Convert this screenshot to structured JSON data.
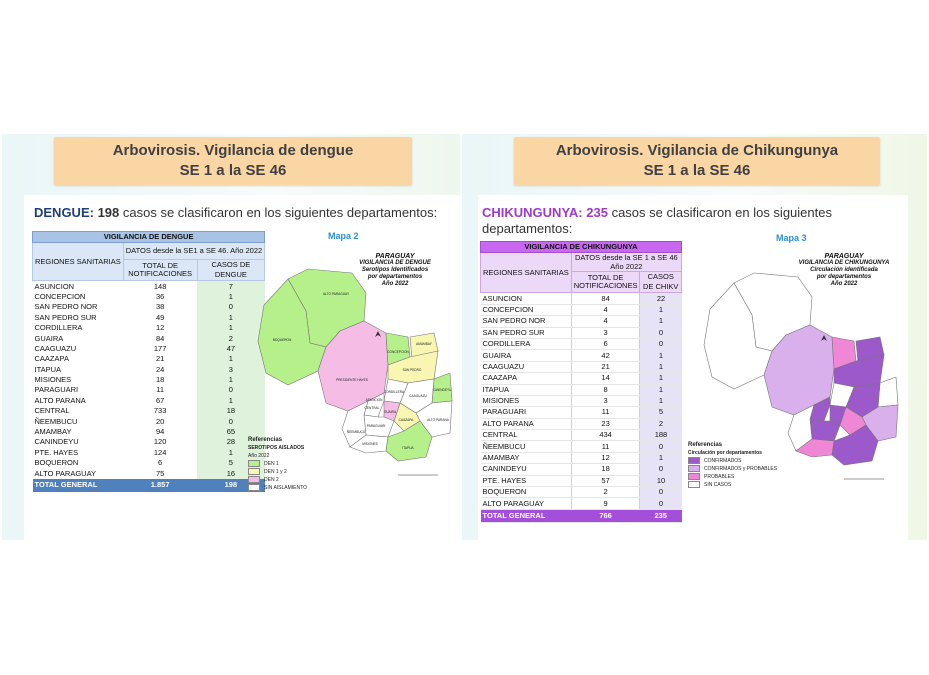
{
  "left": {
    "banner": {
      "line1": "Arbovirosis. Vigilancia de dengue",
      "line2": "SE 1 a la SE 46"
    },
    "heading": {
      "disease": "DENGUE:",
      "count": "198",
      "text": " casos se clasificaron en los siguientes departamentos:"
    },
    "table": {
      "title": "VIGILANCIA DE DENGUE",
      "col_region": "REGIONES  SANITARIAS",
      "col_data": "DATOS desde la SE1 a SE 46. Año 2022",
      "col_notif": "TOTAL DE NOTIFICACIONES",
      "col_cases": "CASOS DE DENGUE",
      "rows": [
        [
          "ASUNCION",
          "148",
          "7"
        ],
        [
          "CONCEPCION",
          "36",
          "1"
        ],
        [
          "SAN PEDRO NOR",
          "38",
          "0"
        ],
        [
          "SAN PEDRO SUR",
          "49",
          "1"
        ],
        [
          "CORDILLERA",
          "12",
          "1"
        ],
        [
          "GUAIRA",
          "84",
          "2"
        ],
        [
          "CAAGUAZU",
          "177",
          "47"
        ],
        [
          "CAAZAPA",
          "21",
          "1"
        ],
        [
          "ITAPUA",
          "24",
          "3"
        ],
        [
          "MISIONES",
          "18",
          "1"
        ],
        [
          "PARAGUARI",
          "11",
          "0"
        ],
        [
          "ALTO PARANA",
          "67",
          "1"
        ],
        [
          "CENTRAL",
          "733",
          "18"
        ],
        [
          "ÑEEMBUCU",
          "20",
          "0"
        ],
        [
          "AMAMBAY",
          "94",
          "65"
        ],
        [
          "CANINDEYU",
          "120",
          "28"
        ],
        [
          "PTE. HAYES",
          "124",
          "1"
        ],
        [
          "BOQUERON",
          "6",
          "5"
        ],
        [
          "ALTO PARAGUAY",
          "75",
          "16"
        ]
      ],
      "total": [
        "TOTAL GENERAL",
        "1.857",
        "198"
      ]
    },
    "map": {
      "label": "Mapa 2",
      "title": [
        "PARAGUAY",
        "VIGILANCIA DE DENGUE",
        "Serotipos Identificados",
        "por departamentos",
        "Año 2022"
      ],
      "legend_title": "Referencias",
      "legend_sub": "SEROTIPOS AISLADOS",
      "legend_year": "Año 2022",
      "legend_items": [
        {
          "label": "DEN 1",
          "color": "#b6f08a"
        },
        {
          "label": "DEN 1 y 2",
          "color": "#f8f6b0"
        },
        {
          "label": "DEN 2",
          "color": "#f5bde6"
        },
        {
          "label": "SIN AISLAMIENTO",
          "color": "#ffffff"
        }
      ],
      "dept_labels": [
        "ALTO PARAGUAY",
        "BOQUERON",
        "PRESIDENTE HAYES",
        "CONCEPCION",
        "AMAMBAY",
        "SAN PEDRO",
        "CANINDEYU",
        "CAAGUAZU",
        "ALTO PARANA",
        "ITAPUA",
        "CAAZAPA",
        "GUAIRA",
        "PARAGUARI",
        "CENTRAL",
        "CORDILLERA",
        "ÑEEMBUCU",
        "MISIONES",
        "ASUNCION"
      ]
    }
  },
  "right": {
    "banner": {
      "line1": "Arbovirosis. Vigilancia de Chikungunya",
      "line2": "SE 1 a la SE 46"
    },
    "heading": {
      "disease": "CHIKUNGUNYA:",
      "count": "235",
      "text": " casos se clasificaron en los siguientes departamentos:"
    },
    "table": {
      "title": "VIGILANCIA DE CHIKUNGUNYA",
      "col_region": "REGIONES  SANITARIAS",
      "col_data": "DATOS desde la SE 1 a SE 46 Año 2022",
      "col_notif": "TOTAL DE NOTIFICACIONES",
      "col_cases": "CASOS DE CHIKV",
      "rows": [
        [
          "ASUNCION",
          "84",
          "22"
        ],
        [
          "CONCEPCION",
          "4",
          "1"
        ],
        [
          "SAN PEDRO NOR",
          "4",
          "1"
        ],
        [
          "SAN PEDRO SUR",
          "3",
          "0"
        ],
        [
          "CORDILLERA",
          "6",
          "0"
        ],
        [
          "GUAIRA",
          "42",
          "1"
        ],
        [
          "CAAGUAZU",
          "21",
          "1"
        ],
        [
          "CAAZAPA",
          "14",
          "1"
        ],
        [
          "ITAPUA",
          "8",
          "1"
        ],
        [
          "MISIONES",
          "3",
          "1"
        ],
        [
          "PARAGUARI",
          "11",
          "5"
        ],
        [
          "ALTO PARANA",
          "23",
          "2"
        ],
        [
          "CENTRAL",
          "434",
          "188"
        ],
        [
          "ÑEEMBUCU",
          "11",
          "0"
        ],
        [
          "AMAMBAY",
          "12",
          "1"
        ],
        [
          "CANINDEYU",
          "18",
          "0"
        ],
        [
          "PTE. HAYES",
          "57",
          "10"
        ],
        [
          "BOQUERON",
          "2",
          "0"
        ],
        [
          "ALTO PARAGUAY",
          "9",
          "0"
        ]
      ],
      "total": [
        "TOTAL GENERAL",
        "766",
        "235"
      ]
    },
    "map": {
      "label": "Mapa 3",
      "title": [
        "PARAGUAY",
        "VIGILANCIA DE CHIKUNGUNYA",
        "Circulación identificada",
        "por departamentos",
        "Año 2022"
      ],
      "legend_title": "Referencias",
      "legend_sub": "Circulación por departamentos",
      "legend_items": [
        {
          "label": "CONFIRMADOS",
          "color": "#9b59c9"
        },
        {
          "label": "CONFIRMADOS y PROBABLES",
          "color": "#d9b0ec"
        },
        {
          "label": "PROBABLES",
          "color": "#f086d6"
        },
        {
          "label": "SIN CASOS",
          "color": "#ffffff"
        }
      ]
    }
  }
}
